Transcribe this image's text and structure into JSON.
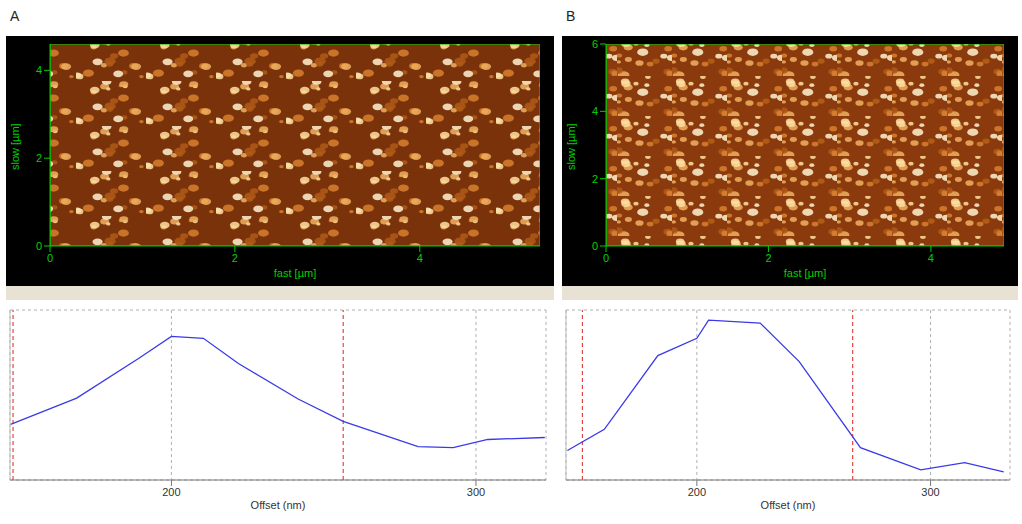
{
  "chart_data": [
    {
      "type": "image",
      "title": "A",
      "xlabel": "fast [µm]",
      "ylabel": "slow [µm]",
      "xlim": [
        0,
        5.3
      ],
      "ylim": [
        0,
        4.6
      ],
      "xticks": [
        0,
        2,
        4
      ],
      "yticks": [
        0,
        2,
        4
      ]
    },
    {
      "type": "line",
      "xlabel": "Offset (nm)",
      "x": [
        147.2,
        168.9,
        189.2,
        200,
        210.5,
        222,
        241.6,
        256.4,
        281,
        292.5,
        303.9,
        322.6
      ],
      "values": [
        0.96,
        1.89,
        3.29,
        4.07,
        4.0,
        3.11,
        1.86,
        1.07,
        0.18,
        0.14,
        0.43,
        0.5
      ],
      "color": "#3a3ae8",
      "xlim": [
        147,
        323
      ],
      "ylim": [
        -1,
        5
      ],
      "xticks": [
        200,
        300
      ],
      "yticks": [
        0,
        1,
        2,
        3,
        4
      ],
      "grid": true,
      "tick_labels": "x",
      "cursors": [
        148,
        256.4
      ]
    },
    {
      "type": "image",
      "title": "B",
      "xlabel": "fast [µm]",
      "ylabel": "slow [µm]",
      "xlim": [
        0,
        4.9
      ],
      "ylim": [
        0,
        6
      ],
      "xticks": [
        0,
        2,
        4
      ],
      "yticks": [
        0,
        2,
        4,
        6
      ]
    },
    {
      "type": "line",
      "xlabel": "Offset (nm)",
      "x": [
        144.6,
        160.4,
        183.3,
        200,
        205,
        227.1,
        243.8,
        270,
        295.8,
        314.6,
        331.3
      ],
      "values": [
        0.04,
        0.79,
        3.39,
        4.0,
        4.64,
        4.54,
        3.18,
        0.14,
        -0.64,
        -0.39,
        -0.71
      ],
      "color": "#3a3ae8",
      "xlim": [
        144,
        334
      ],
      "ylim": [
        -1,
        5
      ],
      "xticks": [
        200,
        300
      ],
      "yticks": [
        0,
        1,
        2,
        3,
        4
      ],
      "grid": true,
      "tick_labels": "x",
      "cursors": [
        151,
        266.7
      ]
    }
  ]
}
